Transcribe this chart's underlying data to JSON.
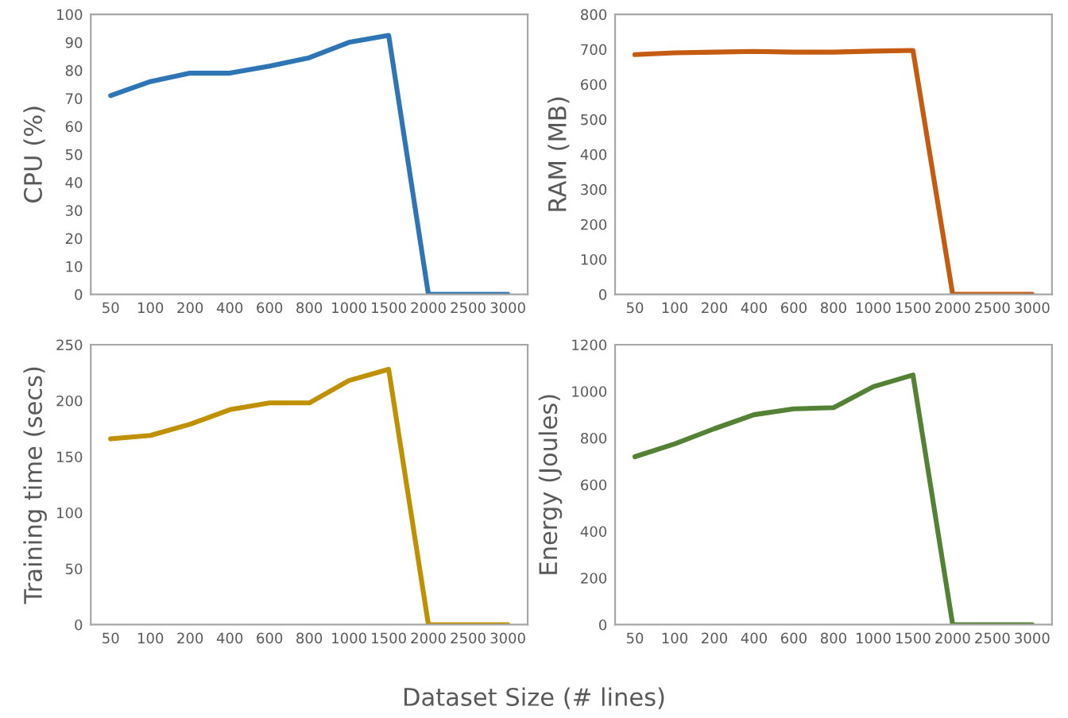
{
  "chart_data": [
    {
      "type": "line",
      "ylabel": "CPU (%)",
      "categories": [
        "50",
        "100",
        "200",
        "400",
        "600",
        "800",
        "1000",
        "1500",
        "2000",
        "2500",
        "3000"
      ],
      "series": [
        {
          "color": "#2e75b6",
          "values": [
            71,
            76,
            79,
            79,
            81.5,
            84.5,
            90,
            92.5,
            0,
            0,
            0
          ]
        }
      ],
      "ylim": [
        0,
        100
      ],
      "yticks": [
        0,
        10,
        20,
        30,
        40,
        50,
        60,
        70,
        80,
        90,
        100
      ],
      "grid": false,
      "legend": false
    },
    {
      "type": "line",
      "ylabel": "RAM (MB)",
      "categories": [
        "50",
        "100",
        "200",
        "400",
        "600",
        "800",
        "1000",
        "1500",
        "2000",
        "2500",
        "3000"
      ],
      "series": [
        {
          "color": "#c55a11",
          "values": [
            685,
            690,
            692,
            694,
            692,
            692,
            695,
            697,
            0,
            0,
            0
          ]
        }
      ],
      "ylim": [
        0,
        800
      ],
      "yticks": [
        0,
        100,
        200,
        300,
        400,
        500,
        600,
        700,
        800
      ],
      "grid": false,
      "legend": false
    },
    {
      "type": "line",
      "ylabel": "Training time (secs)",
      "xlabel": "Dataset Size (# lines)",
      "categories": [
        "50",
        "100",
        "200",
        "400",
        "600",
        "800",
        "1000",
        "1500",
        "2000",
        "2500",
        "3000"
      ],
      "series": [
        {
          "color": "#bf9000",
          "values": [
            166,
            169,
            179,
            192,
            198,
            198,
            218,
            228,
            0,
            0,
            0
          ]
        }
      ],
      "ylim": [
        0,
        250
      ],
      "yticks": [
        0,
        50,
        100,
        150,
        200,
        250
      ],
      "grid": false,
      "legend": false
    },
    {
      "type": "line",
      "ylabel": "Energy (Joules)",
      "categories": [
        "50",
        "100",
        "200",
        "400",
        "600",
        "800",
        "1000",
        "1500",
        "2000",
        "2500",
        "3000"
      ],
      "series": [
        {
          "color": "#548235",
          "values": [
            720,
            775,
            840,
            900,
            925,
            930,
            1020,
            1070,
            0,
            0,
            0
          ]
        }
      ],
      "ylim": [
        0,
        1200
      ],
      "yticks": [
        0,
        200,
        400,
        600,
        800,
        1000,
        1200
      ],
      "grid": false,
      "legend": false
    }
  ]
}
